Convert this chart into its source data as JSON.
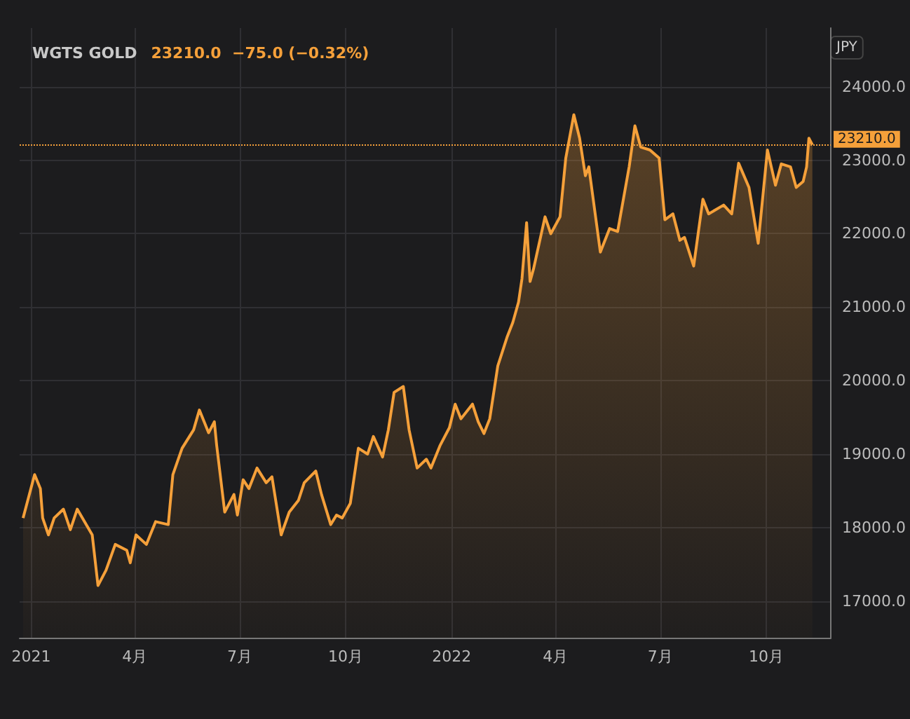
{
  "chart_data": {
    "type": "area",
    "title": "WGTS GOLD",
    "subtitle": "23210.0  −75.0 (−0.32%)",
    "ylabel": "JPY",
    "x": [
      "2020-12-25",
      "2021-01-04",
      "2021-01-09",
      "2021-01-11",
      "2021-01-16",
      "2021-01-21",
      "2021-01-29",
      "2021-02-04",
      "2021-02-10",
      "2021-02-23",
      "2021-02-28",
      "2021-03-07",
      "2021-03-15",
      "2021-03-25",
      "2021-03-28",
      "2021-04-02",
      "2021-04-11",
      "2021-04-19",
      "2021-04-30",
      "2021-05-04",
      "2021-05-12",
      "2021-05-22",
      "2021-05-27",
      "2021-06-04",
      "2021-06-09",
      "2021-06-11",
      "2021-06-18",
      "2021-06-26",
      "2021-06-29",
      "2021-07-04",
      "2021-07-09",
      "2021-07-16",
      "2021-07-24",
      "2021-07-29",
      "2021-08-06",
      "2021-08-13",
      "2021-08-21",
      "2021-08-26",
      "2021-09-05",
      "2021-09-10",
      "2021-09-18",
      "2021-09-23",
      "2021-09-28",
      "2021-10-05",
      "2021-10-12",
      "2021-10-20",
      "2021-10-25",
      "2021-11-02",
      "2021-11-07",
      "2021-11-12",
      "2021-11-20",
      "2021-11-25",
      "2021-12-02",
      "2021-12-10",
      "2021-12-14",
      "2021-12-22",
      "2021-12-30",
      "2022-01-04",
      "2022-01-09",
      "2022-01-19",
      "2022-01-24",
      "2022-01-29",
      "2022-02-03",
      "2022-02-10",
      "2022-02-18",
      "2022-02-23",
      "2022-02-28",
      "2022-03-03",
      "2022-03-07",
      "2022-03-10",
      "2022-03-13",
      "2022-03-23",
      "2022-03-28",
      "2022-04-05",
      "2022-04-10",
      "2022-04-17",
      "2022-04-22",
      "2022-04-27",
      "2022-04-30",
      "2022-05-10",
      "2022-05-18",
      "2022-05-25",
      "2022-06-04",
      "2022-06-09",
      "2022-06-14",
      "2022-06-22",
      "2022-06-30",
      "2022-07-05",
      "2022-07-12",
      "2022-07-18",
      "2022-07-22",
      "2022-07-30",
      "2022-08-07",
      "2022-08-12",
      "2022-08-25",
      "2022-09-01",
      "2022-09-07",
      "2022-09-16",
      "2022-09-24",
      "2022-10-02",
      "2022-10-09",
      "2022-10-14",
      "2022-10-22",
      "2022-10-27",
      "2022-11-02",
      "2022-11-05",
      "2022-11-07",
      "2022-11-10"
    ],
    "series": [
      {
        "color": "#f5a03a",
        "values": [
          18130,
          18720,
          18530,
          18130,
          17900,
          18130,
          18250,
          17970,
          18250,
          17900,
          17210,
          17420,
          17770,
          17690,
          17520,
          17900,
          17770,
          18080,
          18040,
          18720,
          19080,
          19330,
          19600,
          19290,
          19440,
          19120,
          18210,
          18450,
          18170,
          18650,
          18530,
          18810,
          18610,
          18690,
          17900,
          18210,
          18370,
          18610,
          18770,
          18450,
          18040,
          18170,
          18130,
          18330,
          19080,
          19000,
          19240,
          18960,
          19330,
          19840,
          19920,
          19330,
          18810,
          18930,
          18810,
          19120,
          19360,
          19680,
          19480,
          19680,
          19440,
          19280,
          19480,
          20200,
          20590,
          20790,
          21070,
          21390,
          22150,
          21350,
          21520,
          22230,
          22000,
          22230,
          23030,
          23620,
          23300,
          22790,
          22910,
          21750,
          22070,
          22030,
          22910,
          23470,
          23180,
          23140,
          23030,
          22190,
          22270,
          21910,
          21950,
          21560,
          22470,
          22270,
          22390,
          22270,
          22960,
          22630,
          21870,
          23140,
          22660,
          22950,
          22910,
          22630,
          22710,
          22910,
          23300,
          23210
        ]
      }
    ],
    "xlim": [
      "2020-12-22",
      "2022-11-26"
    ],
    "xticks": [
      {
        "value": "2021-01-01",
        "label": "2021"
      },
      {
        "value": "2021-04-01",
        "label": "4月"
      },
      {
        "value": "2021-07-01",
        "label": "7月"
      },
      {
        "value": "2021-10-01",
        "label": "10月"
      },
      {
        "value": "2022-01-01",
        "label": "2022"
      },
      {
        "value": "2022-04-01",
        "label": "4月"
      },
      {
        "value": "2022-07-01",
        "label": "7月"
      },
      {
        "value": "2022-10-01",
        "label": "10月"
      }
    ],
    "ylim": [
      16500,
      24800
    ],
    "yticks": [
      {
        "value": 17000,
        "label": "17000.0"
      },
      {
        "value": 18000,
        "label": "18000.0"
      },
      {
        "value": 19000,
        "label": "19000.0"
      },
      {
        "value": 20000,
        "label": "20000.0"
      },
      {
        "value": 21000,
        "label": "21000.0"
      },
      {
        "value": 22000,
        "label": "22000.0"
      },
      {
        "value": 23000,
        "label": "23000.0"
      },
      {
        "value": 24000,
        "label": "24000.0"
      }
    ],
    "ref_lines": [
      {
        "axis": "y",
        "value": 23210,
        "label": "23210.0",
        "color": "#f5a03a",
        "line_style": "dotted"
      }
    ],
    "grid": true,
    "marker": "none",
    "line_style": "solid"
  }
}
